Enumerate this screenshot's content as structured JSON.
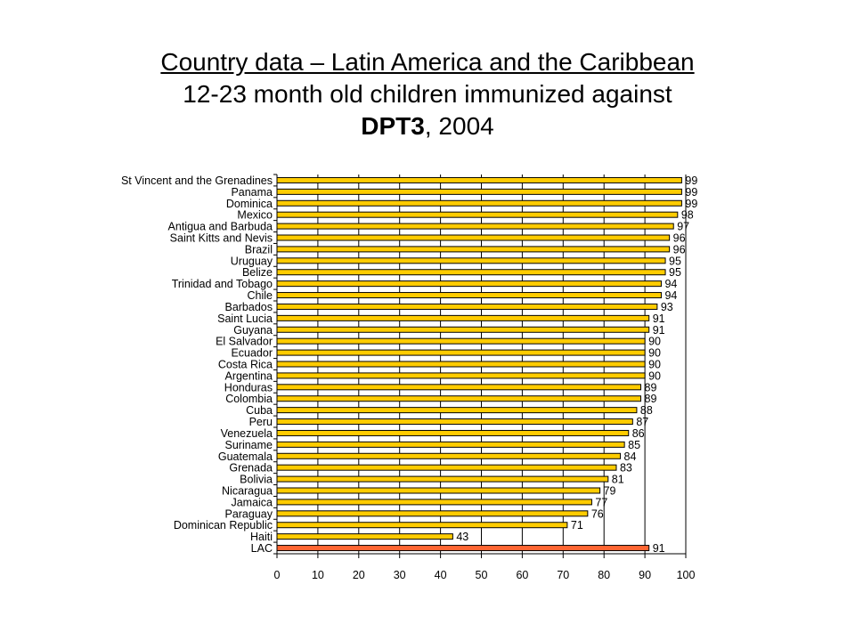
{
  "title": {
    "line1": "Country data – Latin America and the Caribbean",
    "line2": "12-23 month old children immunized against",
    "line3_bold": "DPT3",
    "line3_rest": ", 2004"
  },
  "colors": {
    "bar_fill": "#FFCC00",
    "bar_highlight_fill": "#FF6633",
    "bar_stroke": "#000000",
    "gridline": "#000000"
  },
  "chart_data": {
    "type": "bar",
    "orientation": "horizontal",
    "categories": [
      "St Vincent and the Grenadines",
      "Panama",
      "Dominica",
      "Mexico",
      "Antigua and Barbuda",
      "Saint Kitts and Nevis",
      "Brazil",
      "Uruguay",
      "Belize",
      "Trinidad and Tobago",
      "Chile",
      "Barbados",
      "Saint Lucia",
      "Guyana",
      "El Salvador",
      "Ecuador",
      "Costa Rica",
      "Argentina",
      "Honduras",
      "Colombia",
      "Cuba",
      "Peru",
      "Venezuela",
      "Suriname",
      "Guatemala",
      "Grenada",
      "Bolivia",
      "Nicaragua",
      "Jamaica",
      "Paraguay",
      "Dominican Republic",
      "Haiti",
      "LAC"
    ],
    "values": [
      99,
      99,
      99,
      98,
      97,
      96,
      96,
      95,
      95,
      94,
      94,
      93,
      91,
      91,
      90,
      90,
      90,
      90,
      89,
      89,
      88,
      87,
      86,
      85,
      84,
      83,
      81,
      79,
      77,
      76,
      71,
      43,
      91
    ],
    "highlight_category": "LAC",
    "xlim": [
      0,
      100
    ],
    "xticks": [
      "0",
      "10",
      "20",
      "30",
      "40",
      "50",
      "60",
      "70",
      "80",
      "90",
      "100"
    ],
    "grid": "vertical",
    "xlabel": "",
    "ylabel": ""
  }
}
